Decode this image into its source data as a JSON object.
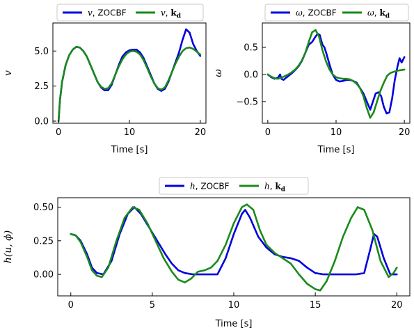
{
  "colors": {
    "zocbf": "#0000e0",
    "kd": "#1a8a1a"
  },
  "chart_data": [
    {
      "type": "line",
      "xlabel": "Time [s]",
      "ylabel": "v",
      "xlim": [
        -0.8,
        20.8
      ],
      "ylim": [
        -0.15,
        7.0
      ],
      "xticks": [
        0,
        10,
        20
      ],
      "xtick_labels": [
        "0",
        "10",
        "20"
      ],
      "yticks": [
        0.0,
        2.5,
        5.0
      ],
      "ytick_labels": [
        "0.0",
        "2.5",
        "5.0"
      ],
      "legend": {
        "placement": "top-center",
        "items": [
          {
            "var": "v",
            "sep": ", ",
            "label": "ZOCBF",
            "bold": false
          },
          {
            "var": "v",
            "sep": ", ",
            "label": "k",
            "sub": "d",
            "bold": true
          }
        ]
      },
      "series": [
        {
          "name": "v, ZOCBF",
          "color_key": "zocbf",
          "x": [
            0,
            0.2,
            0.5,
            1,
            1.5,
            2,
            2.5,
            3,
            3.5,
            4,
            4.5,
            5,
            5.5,
            6,
            6.5,
            7,
            7.5,
            8,
            8.5,
            9,
            9.5,
            10,
            10.5,
            11,
            11.5,
            12,
            12.5,
            13,
            13.5,
            14,
            14.5,
            15,
            15.5,
            16,
            16.5,
            17,
            17.5,
            18,
            18.5,
            19,
            19.5,
            20
          ],
          "y": [
            0,
            1.5,
            2.8,
            4.0,
            4.7,
            5.1,
            5.3,
            5.25,
            5.0,
            4.6,
            4.0,
            3.4,
            2.8,
            2.4,
            2.2,
            2.2,
            2.6,
            3.3,
            4.0,
            4.6,
            4.9,
            5.05,
            5.1,
            5.1,
            4.9,
            4.5,
            3.9,
            3.3,
            2.7,
            2.3,
            2.15,
            2.3,
            2.8,
            3.5,
            4.2,
            4.9,
            5.8,
            6.55,
            6.3,
            5.5,
            5.0,
            4.65
          ]
        },
        {
          "name": "v, kd",
          "color_key": "kd",
          "x": [
            0,
            0.2,
            0.5,
            1,
            1.5,
            2,
            2.5,
            3,
            3.5,
            4,
            4.5,
            5,
            5.5,
            6,
            6.5,
            7,
            7.5,
            8,
            8.5,
            9,
            9.5,
            10,
            10.5,
            11,
            11.5,
            12,
            12.5,
            13,
            13.5,
            14,
            14.5,
            15,
            15.5,
            16,
            16.5,
            17,
            17.5,
            18,
            18.5,
            19,
            19.5,
            20
          ],
          "y": [
            0,
            1.5,
            2.8,
            4.0,
            4.7,
            5.1,
            5.3,
            5.25,
            5.0,
            4.6,
            4.0,
            3.4,
            2.8,
            2.45,
            2.3,
            2.35,
            2.7,
            3.3,
            3.9,
            4.4,
            4.75,
            4.95,
            5.0,
            4.95,
            4.75,
            4.35,
            3.8,
            3.2,
            2.7,
            2.35,
            2.25,
            2.4,
            2.9,
            3.5,
            4.1,
            4.6,
            5.0,
            5.2,
            5.25,
            5.15,
            4.95,
            4.75
          ]
        }
      ]
    },
    {
      "type": "line",
      "xlabel": "Time [s]",
      "ylabel": "ω",
      "xlim": [
        -0.8,
        20.8
      ],
      "ylim": [
        -0.9,
        0.95
      ],
      "xticks": [
        0,
        10,
        20
      ],
      "xtick_labels": [
        "0",
        "10",
        "20"
      ],
      "yticks": [
        -0.5,
        0.0,
        0.5
      ],
      "ytick_labels": [
        "−0.5",
        "0.0",
        "0.5"
      ],
      "legend": {
        "placement": "top-center",
        "items": [
          {
            "var": "ω",
            "sep": ", ",
            "label": "ZOCBF",
            "bold": false
          },
          {
            "var": "ω",
            "sep": ", ",
            "label": "k",
            "sub": "d",
            "bold": true
          }
        ]
      },
      "series": [
        {
          "name": "ω, ZOCBF",
          "color_key": "zocbf",
          "x": [
            0,
            0.5,
            1,
            1.5,
            1.8,
            2,
            2.3,
            2.6,
            3,
            3.5,
            4,
            4.5,
            5,
            5.5,
            6,
            6.5,
            7,
            7.3,
            7.6,
            8,
            8.3,
            8.6,
            9,
            9.5,
            10,
            10.5,
            11,
            11.5,
            12,
            12.5,
            13,
            13.5,
            14,
            14.5,
            15,
            15.4,
            15.8,
            16.2,
            16.6,
            17,
            17.4,
            17.8,
            18.2,
            18.6,
            19,
            19.3,
            19.6,
            20
          ],
          "y": [
            0,
            -0.05,
            -0.08,
            -0.06,
            0.0,
            -0.08,
            -0.1,
            -0.07,
            -0.03,
            0.02,
            0.08,
            0.15,
            0.25,
            0.4,
            0.55,
            0.6,
            0.7,
            0.75,
            0.73,
            0.55,
            0.5,
            0.38,
            0.2,
            0.0,
            -0.1,
            -0.13,
            -0.12,
            -0.1,
            -0.1,
            -0.12,
            -0.15,
            -0.25,
            -0.35,
            -0.5,
            -0.65,
            -0.5,
            -0.35,
            -0.33,
            -0.4,
            -0.6,
            -0.72,
            -0.7,
            -0.45,
            -0.1,
            0.15,
            0.3,
            0.22,
            0.32
          ]
        },
        {
          "name": "ω, kd",
          "color_key": "kd",
          "x": [
            0,
            0.5,
            1,
            1.5,
            2,
            2.5,
            3,
            3.5,
            4,
            4.5,
            5,
            5.5,
            6,
            6.5,
            7,
            7.5,
            8,
            8.5,
            9,
            9.5,
            10,
            10.5,
            11,
            11.5,
            12,
            12.5,
            13,
            13.5,
            14,
            14.5,
            15,
            15.5,
            16,
            16.5,
            17,
            17.5,
            18,
            18.5,
            19,
            19.5,
            20
          ],
          "y": [
            0,
            -0.04,
            -0.07,
            -0.08,
            -0.06,
            -0.03,
            0.0,
            0.04,
            0.09,
            0.16,
            0.26,
            0.4,
            0.6,
            0.78,
            0.82,
            0.7,
            0.45,
            0.25,
            0.1,
            0.0,
            -0.05,
            -0.07,
            -0.08,
            -0.08,
            -0.09,
            -0.12,
            -0.17,
            -0.25,
            -0.4,
            -0.62,
            -0.8,
            -0.7,
            -0.5,
            -0.3,
            -0.15,
            -0.02,
            0.03,
            0.05,
            0.07,
            0.08,
            0.09
          ]
        }
      ]
    },
    {
      "type": "line",
      "xlabel": "Time [s]",
      "ylabel": "h(u, ϕ)",
      "xlim": [
        -0.8,
        20.8
      ],
      "ylim": [
        -0.16,
        0.57
      ],
      "xticks": [
        0,
        5,
        10,
        15,
        20
      ],
      "xtick_labels": [
        "0",
        "5",
        "10",
        "15",
        "20"
      ],
      "yticks": [
        0.0,
        0.25,
        0.5
      ],
      "ytick_labels": [
        "0.00",
        "0.25",
        "0.50"
      ],
      "legend": {
        "placement": "top-center",
        "items": [
          {
            "var": "h",
            "sep": ", ",
            "label": "ZOCBF",
            "bold": false
          },
          {
            "var": "h",
            "sep": ", ",
            "label": "k",
            "sub": "d",
            "bold": true
          }
        ]
      },
      "series": [
        {
          "name": "h, ZOCBF",
          "color_key": "zocbf",
          "x": [
            0,
            0.3,
            0.6,
            1,
            1.3,
            1.6,
            2,
            2.5,
            3,
            3.5,
            3.9,
            4.3,
            4.8,
            5.3,
            5.8,
            6.2,
            6.6,
            7,
            7.5,
            8,
            8.5,
            9,
            9.5,
            10,
            10.5,
            10.7,
            11,
            11.5,
            12,
            12.5,
            13,
            13.5,
            14,
            14.5,
            15,
            15.5,
            16,
            16.5,
            17,
            17.5,
            18,
            18.4,
            18.6,
            18.8,
            19.2,
            19.6,
            20
          ],
          "y": [
            0.3,
            0.29,
            0.25,
            0.15,
            0.05,
            0.01,
            0.0,
            0.1,
            0.3,
            0.45,
            0.5,
            0.45,
            0.35,
            0.25,
            0.15,
            0.08,
            0.03,
            0.01,
            0.0,
            0.0,
            0.0,
            0.0,
            0.12,
            0.3,
            0.45,
            0.48,
            0.42,
            0.28,
            0.2,
            0.15,
            0.13,
            0.12,
            0.1,
            0.05,
            0.01,
            0.0,
            0.0,
            0.0,
            0.0,
            0.0,
            0.01,
            0.2,
            0.3,
            0.28,
            0.12,
            0.0,
            0.0
          ]
        },
        {
          "name": "h, kd",
          "color_key": "kd",
          "x": [
            0,
            0.3,
            0.6,
            1,
            1.3,
            1.6,
            1.9,
            2.3,
            2.8,
            3.3,
            3.8,
            4.2,
            4.7,
            5.2,
            5.7,
            6.2,
            6.6,
            7,
            7.4,
            7.8,
            8.2,
            8.6,
            9,
            9.5,
            10,
            10.5,
            10.8,
            11.2,
            11.6,
            12,
            12.5,
            13,
            13.5,
            14,
            14.5,
            15,
            15.3,
            15.7,
            16.2,
            16.7,
            17.2,
            17.6,
            18,
            18.5,
            19,
            19.5,
            19.8,
            20
          ],
          "y": [
            0.3,
            0.29,
            0.24,
            0.13,
            0.03,
            -0.01,
            -0.02,
            0.05,
            0.25,
            0.42,
            0.5,
            0.48,
            0.38,
            0.25,
            0.12,
            0.02,
            -0.04,
            -0.06,
            -0.03,
            0.02,
            0.03,
            0.05,
            0.1,
            0.22,
            0.38,
            0.5,
            0.52,
            0.48,
            0.33,
            0.22,
            0.16,
            0.12,
            0.08,
            0.0,
            -0.07,
            -0.11,
            -0.12,
            -0.05,
            0.1,
            0.28,
            0.42,
            0.5,
            0.48,
            0.33,
            0.1,
            -0.02,
            0.01,
            0.05
          ]
        }
      ]
    }
  ]
}
